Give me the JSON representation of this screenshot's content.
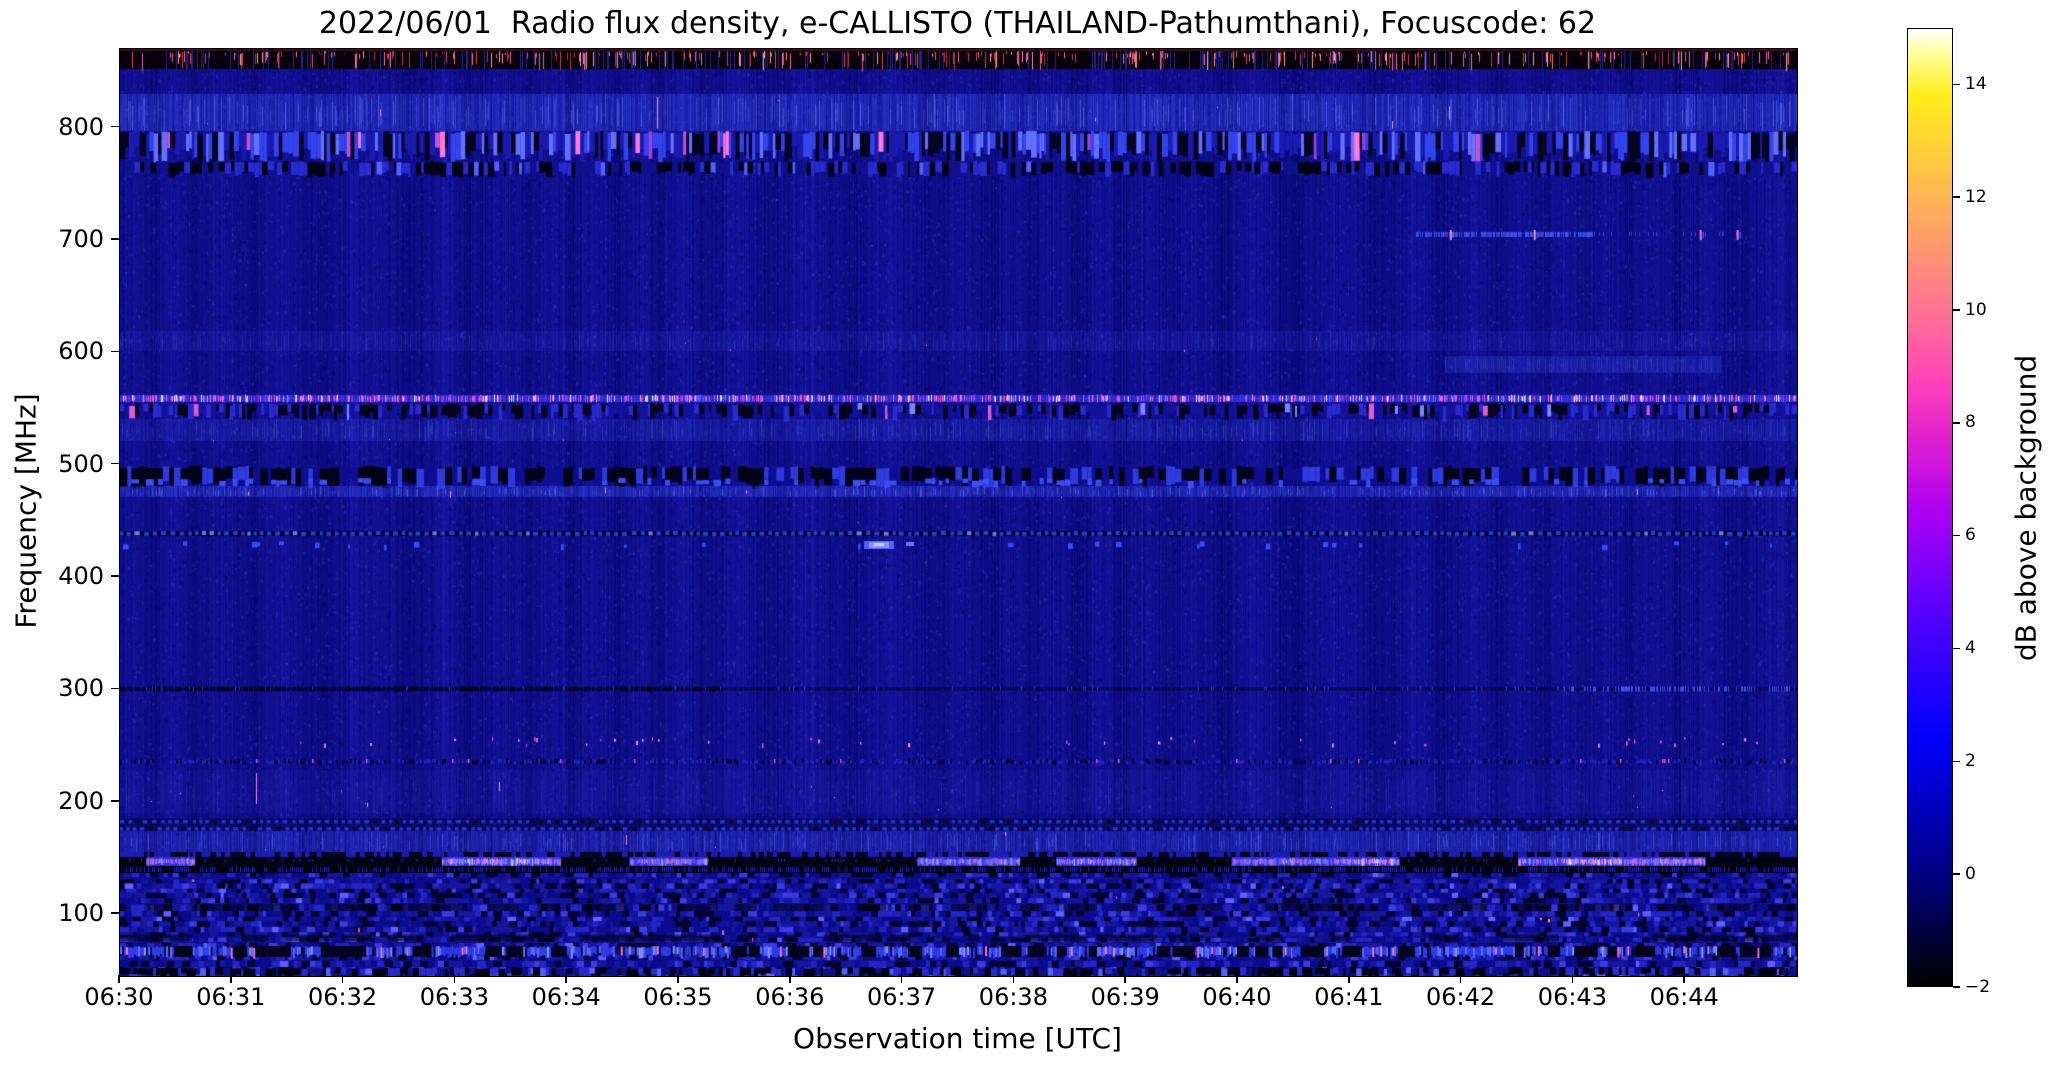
{
  "chart_data": {
    "type": "heatmap",
    "title": "2022/06/01  Radio flux density, e-CALLISTO (THAILAND-Pathumthani), Focuscode: 62",
    "xlabel": "Observation time [UTC]",
    "ylabel": "Frequency [MHz]",
    "x_ticks": [
      "06:30",
      "06:31",
      "06:32",
      "06:33",
      "06:34",
      "06:35",
      "06:36",
      "06:37",
      "06:38",
      "06:39",
      "06:40",
      "06:41",
      "06:42",
      "06:43",
      "06:44"
    ],
    "x_range_minutes": [
      0,
      15
    ],
    "x_start_time": "06:30",
    "y_ticks": [
      800,
      700,
      600,
      500,
      400,
      300,
      200,
      100
    ],
    "ylim_mhz": [
      45,
      870
    ],
    "grid": false,
    "legend": "none",
    "background_level_db": 0.5,
    "colormap_base_color": "#0a0a8c",
    "colorbar": {
      "label": "dB above background",
      "ticks": [
        14,
        12,
        10,
        8,
        6,
        4,
        2,
        0,
        -2
      ],
      "range": [
        -2,
        15
      ],
      "colormap": "gnuplot2",
      "stops": [
        [
          0.0,
          "#000000"
        ],
        [
          0.12,
          "#000085"
        ],
        [
          0.26,
          "#0000ff"
        ],
        [
          0.35,
          "#3a00ff"
        ],
        [
          0.42,
          "#6e00ff"
        ],
        [
          0.5,
          "#b000f0"
        ],
        [
          0.57,
          "#e01fd0"
        ],
        [
          0.63,
          "#ff40b8"
        ],
        [
          0.7,
          "#ff6f98"
        ],
        [
          0.78,
          "#ff9c6a"
        ],
        [
          0.86,
          "#ffc940"
        ],
        [
          0.93,
          "#ffec18"
        ],
        [
          0.975,
          "#ffff9c"
        ],
        [
          1.0,
          "#ffffff"
        ]
      ]
    },
    "interference_bands": [
      {
        "style": "noise_blue",
        "f": [
          797,
          830
        ],
        "level": 0.5
      },
      {
        "style": "bright_mix",
        "f": [
          770,
          797
        ]
      },
      {
        "style": "mottled_dark",
        "f": [
          757,
          770
        ]
      },
      {
        "style": "red_dashes",
        "f": [
          852,
          870
        ]
      },
      {
        "style": "sparse_blue_line",
        "f": [
          701,
          710
        ],
        "seg": [
          0.773,
          0.878
        ],
        "ticks": [
          0.793,
          0.843,
          0.942,
          0.964
        ]
      },
      {
        "style": "noise_faint",
        "f": [
          601,
          619
        ],
        "level": 0.16
      },
      {
        "style": "soft_patch",
        "f": [
          582,
          597
        ],
        "x": [
          0.79,
          0.955
        ]
      },
      {
        "style": "magenta_line",
        "f": [
          555,
          563
        ]
      },
      {
        "style": "mottled_mid",
        "f": [
          541,
          555
        ]
      },
      {
        "style": "noise_faint",
        "f": [
          521,
          541
        ],
        "level": 0.26
      },
      {
        "style": "mottled_dark2",
        "f": [
          481,
          499
        ]
      },
      {
        "style": "noise_blue",
        "f": [
          471,
          481
        ],
        "level": 0.5
      },
      {
        "style": "dotted",
        "f": [
          436,
          443
        ]
      },
      {
        "style": "sparse_bright",
        "f": [
          422,
          434
        ],
        "blob": [
          0.452
        ]
      },
      {
        "style": "dark_line",
        "f": [
          297,
          305
        ]
      },
      {
        "style": "pink_speckle",
        "f": [
          249,
          258
        ],
        "density": 0.045
      },
      {
        "style": "dash_row",
        "f": [
          231,
          242
        ]
      },
      {
        "style": "noise_faint",
        "f": [
          190,
          228
        ],
        "level": 0.1
      },
      {
        "style": "dotted_double",
        "f": [
          174,
          186
        ]
      },
      {
        "style": "noise_blue",
        "f": [
          155,
          174
        ],
        "level": 0.38
      },
      {
        "style": "chunky",
        "f": [
          45,
          137
        ]
      },
      {
        "style": "bright_band",
        "f": [
          137,
          155
        ]
      },
      {
        "style": "bright_blue_row",
        "f": [
          62,
          72
        ]
      },
      {
        "style": "mottled_dark",
        "f": [
          45,
          53
        ]
      },
      {
        "style": "pink_speckle",
        "f": [
          72,
          132
        ],
        "density": 0.012
      }
    ]
  }
}
